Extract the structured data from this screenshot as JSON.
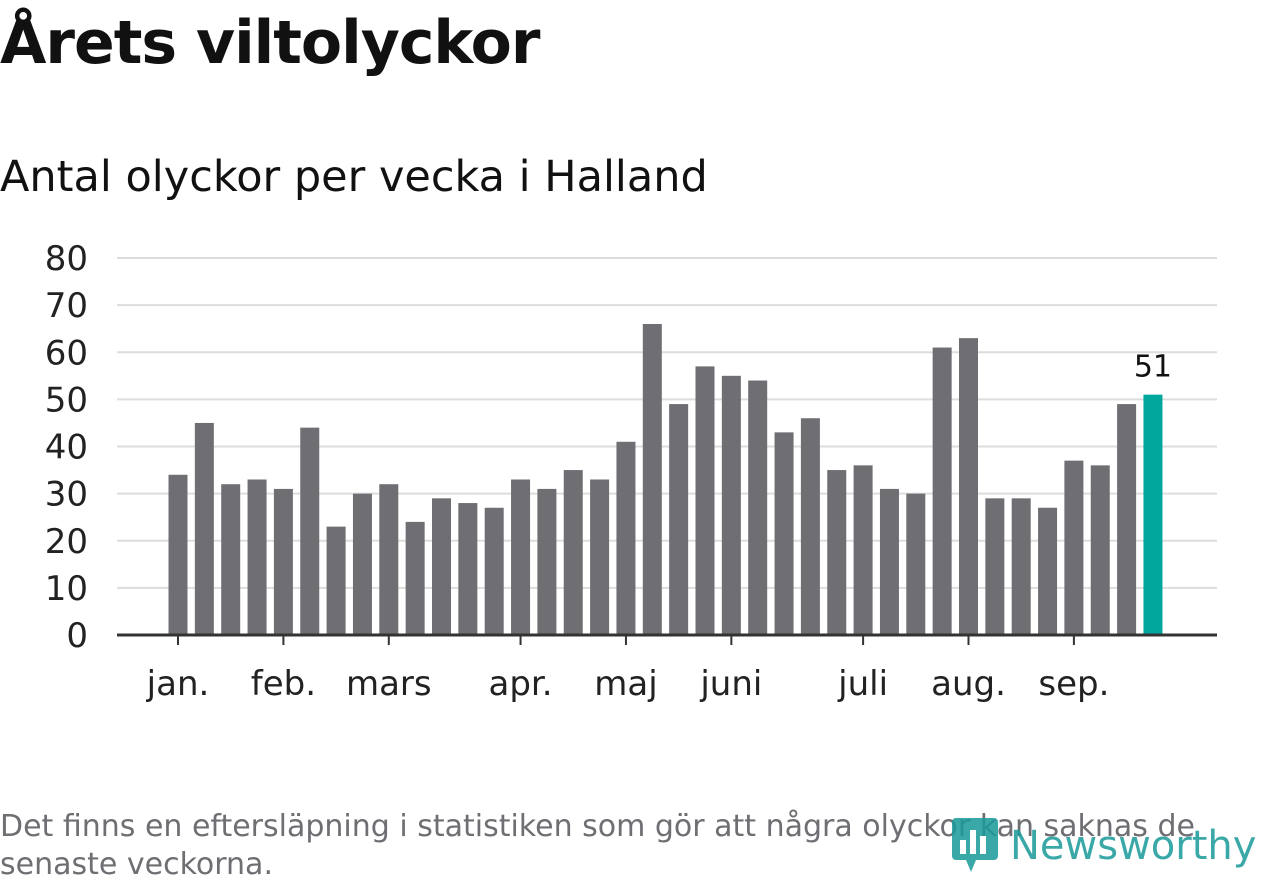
{
  "header": {
    "title": "Årets viltolyckor",
    "subtitle": "Antal olyckor per vecka i Halland"
  },
  "note": "Det finns en eftersläpning i statistiken som gör att några olyckor kan saknas de senaste veckorna.",
  "brand": {
    "name": "Newsworthy",
    "icon": "newsworthy-logo-icon"
  },
  "colors": {
    "bar": "#6f6e73",
    "highlight": "#00a79d",
    "grid": "#dddddd",
    "axis": "#333333",
    "brand": "#1a9a9a"
  },
  "chart_data": {
    "type": "bar",
    "title": "Antal olyckor per vecka i Halland",
    "xlabel": "",
    "ylabel": "",
    "ylim": [
      0,
      80
    ],
    "yticks": [
      0,
      10,
      20,
      30,
      40,
      50,
      60,
      70,
      80
    ],
    "grid": true,
    "month_labels": [
      "jan.",
      "feb.",
      "mars",
      "apr.",
      "maj",
      "juni",
      "juli",
      "aug.",
      "sep."
    ],
    "month_label_week_index": [
      0,
      4,
      8,
      13,
      17,
      21,
      26,
      30,
      34
    ],
    "values": [
      34,
      45,
      32,
      33,
      31,
      44,
      23,
      30,
      32,
      24,
      29,
      28,
      27,
      33,
      31,
      35,
      33,
      41,
      66,
      49,
      57,
      55,
      54,
      43,
      46,
      35,
      36,
      31,
      30,
      61,
      63,
      29,
      29,
      27,
      37,
      36,
      49,
      51
    ],
    "highlight_index": 37,
    "highlight_label": "51"
  }
}
